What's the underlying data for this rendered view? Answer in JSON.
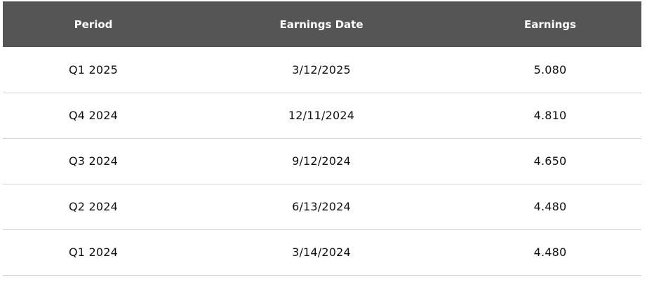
{
  "table": {
    "headers": [
      "Period",
      "Earnings Date",
      "Earnings"
    ],
    "rows": [
      {
        "period": "Q1 2025",
        "date": "3/12/2025",
        "earnings": "5.080"
      },
      {
        "period": "Q4 2024",
        "date": "12/11/2024",
        "earnings": "4.810"
      },
      {
        "period": "Q3 2024",
        "date": "9/12/2024",
        "earnings": "4.650"
      },
      {
        "period": "Q2 2024",
        "date": "6/13/2024",
        "earnings": "4.480"
      },
      {
        "period": "Q1 2024",
        "date": "3/14/2024",
        "earnings": "4.480"
      }
    ]
  },
  "colors": {
    "header_bg": "#555555",
    "header_text": "#ffffff",
    "row_divider": "#d4d4d4"
  }
}
